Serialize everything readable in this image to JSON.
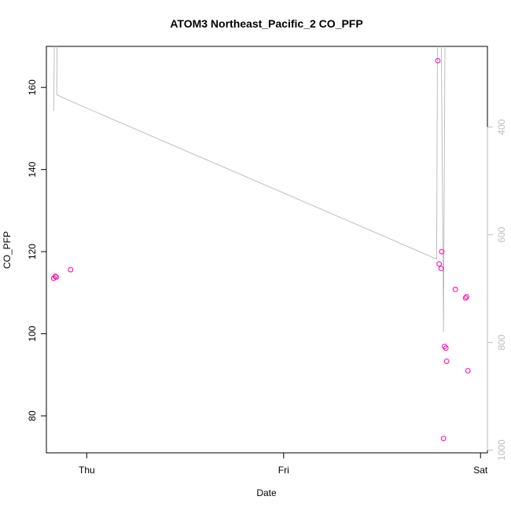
{
  "chart_data": {
    "type": "scatter",
    "title": "ATOM3 Northeast_Pacific_2 CO_PFP",
    "xlabel": "Date",
    "ylabel": "CO_PFP",
    "x_ticks": [
      {
        "label": "Thu",
        "value": 0.0
      },
      {
        "label": "Fri",
        "value": 1.0
      },
      {
        "label": "Sat",
        "value": 2.0
      }
    ],
    "xlim": [
      -0.205,
      2.035
    ],
    "ylim": [
      71,
      170
    ],
    "y_ticks": [
      80,
      100,
      120,
      140,
      160
    ],
    "y2_ticks": [
      400,
      600,
      800,
      1000
    ],
    "y2lim": [
      1005,
      250
    ],
    "points_color": "#ff00aa",
    "line_color": "#bebebe",
    "axis_color": "#000000",
    "series": [
      {
        "axis": "left",
        "style": "points",
        "points": [
          {
            "x": -0.168,
            "y": 113.5
          },
          {
            "x": -0.16,
            "y": 114.0
          },
          {
            "x": -0.155,
            "y": 113.8
          },
          {
            "x": -0.082,
            "y": 115.6
          },
          {
            "x": 1.783,
            "y": 166.5
          },
          {
            "x": 1.79,
            "y": 117.0
          },
          {
            "x": 1.8,
            "y": 115.9
          },
          {
            "x": 1.803,
            "y": 120.0
          },
          {
            "x": 1.812,
            "y": 74.5
          },
          {
            "x": 1.817,
            "y": 96.9
          },
          {
            "x": 1.824,
            "y": 96.5
          },
          {
            "x": 1.828,
            "y": 93.3
          },
          {
            "x": 1.872,
            "y": 110.8
          },
          {
            "x": 1.924,
            "y": 108.7
          },
          {
            "x": 1.929,
            "y": 109.0
          },
          {
            "x": 1.936,
            "y": 91.0
          }
        ]
      },
      {
        "axis": "right",
        "style": "line",
        "points": [
          {
            "x": -0.168,
            "y": 370
          },
          {
            "x": -0.163,
            "y": 200
          },
          {
            "x": -0.16,
            "y": 200
          },
          {
            "x": -0.16,
            "y": 182
          },
          {
            "x": -0.156,
            "y": 182
          },
          {
            "x": -0.15,
            "y": 182
          },
          {
            "x": -0.152,
            "y": 340
          },
          {
            "x": -0.08,
            "y": 352
          },
          {
            "x": 1.777,
            "y": 645
          },
          {
            "x": 1.782,
            "y": 200
          },
          {
            "x": 1.8,
            "y": 200
          },
          {
            "x": 1.812,
            "y": 780
          },
          {
            "x": 1.82,
            "y": 200
          },
          {
            "x": 1.825,
            "y": 200
          }
        ]
      }
    ]
  }
}
